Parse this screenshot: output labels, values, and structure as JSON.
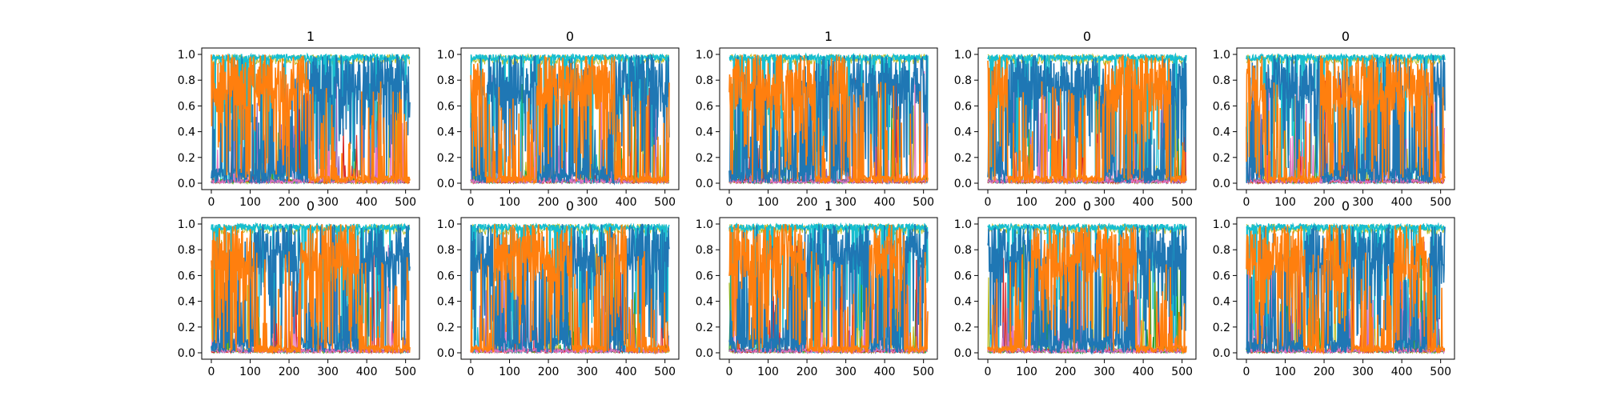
{
  "figure": {
    "rows": 2,
    "cols": 5,
    "tick_labels_x": [
      "0",
      "100",
      "200",
      "300",
      "400",
      "500"
    ],
    "tick_labels_y": [
      "0.0",
      "0.2",
      "0.4",
      "0.6",
      "0.8",
      "1.0"
    ]
  },
  "colors": {
    "blue": "#1f77b4",
    "orange": "#ff7f0e",
    "cyan": "#17becf",
    "olive": "#bcbd22",
    "green": "#2ca02c",
    "red": "#d62728",
    "purple": "#9467bd",
    "pink": "#e377c2"
  },
  "chart_data": [
    {
      "type": "line",
      "title": "1",
      "xlim": [
        0,
        511
      ],
      "ylim": [
        0,
        1
      ],
      "xticks": [
        0,
        100,
        200,
        300,
        400,
        500
      ],
      "yticks": [
        0,
        0.2,
        0.4,
        0.6,
        0.8,
        1.0
      ],
      "dominant_series": "orange",
      "orange_high_spans": [
        [
          0,
          250
        ]
      ]
    },
    {
      "type": "line",
      "title": "0",
      "xlim": [
        0,
        511
      ],
      "ylim": [
        0,
        1
      ],
      "xticks": [
        0,
        100,
        200,
        300,
        400,
        500
      ],
      "yticks": [
        0,
        0.2,
        0.4,
        0.6,
        0.8,
        1.0
      ],
      "dominant_series": "blue",
      "orange_high_spans": [
        [
          0,
          40
        ],
        [
          170,
          370
        ]
      ]
    },
    {
      "type": "line",
      "title": "1",
      "xlim": [
        0,
        511
      ],
      "ylim": [
        0,
        1
      ],
      "xticks": [
        0,
        100,
        200,
        300,
        400,
        500
      ],
      "yticks": [
        0,
        0.2,
        0.4,
        0.6,
        0.8,
        1.0
      ],
      "dominant_series": "orange",
      "orange_high_spans": [
        [
          0,
          220
        ],
        [
          260,
          310
        ]
      ]
    },
    {
      "type": "line",
      "title": "0",
      "xlim": [
        0,
        511
      ],
      "ylim": [
        0,
        1
      ],
      "xticks": [
        0,
        100,
        200,
        300,
        400,
        500
      ],
      "yticks": [
        0,
        0.2,
        0.4,
        0.6,
        0.8,
        1.0
      ],
      "dominant_series": "blue",
      "orange_high_spans": [
        [
          0,
          50
        ],
        [
          300,
          470
        ]
      ]
    },
    {
      "type": "line",
      "title": "0",
      "xlim": [
        0,
        511
      ],
      "ylim": [
        0,
        1
      ],
      "xticks": [
        0,
        100,
        200,
        300,
        400,
        500
      ],
      "yticks": [
        0,
        0.2,
        0.4,
        0.6,
        0.8,
        1.0
      ],
      "dominant_series": "blue",
      "orange_high_spans": [
        [
          0,
          50
        ],
        [
          190,
          480
        ]
      ]
    },
    {
      "type": "line",
      "title": "0",
      "xlim": [
        0,
        511
      ],
      "ylim": [
        0,
        1
      ],
      "xticks": [
        0,
        100,
        200,
        300,
        400,
        500
      ],
      "yticks": [
        0,
        0.2,
        0.4,
        0.6,
        0.8,
        1.0
      ],
      "dominant_series": "blue",
      "orange_high_spans": [
        [
          0,
          110
        ],
        [
          230,
          380
        ]
      ]
    },
    {
      "type": "line",
      "title": "0",
      "xlim": [
        0,
        511
      ],
      "ylim": [
        0,
        1
      ],
      "xticks": [
        0,
        100,
        200,
        300,
        400,
        500
      ],
      "yticks": [
        0,
        0.2,
        0.4,
        0.6,
        0.8,
        1.0
      ],
      "dominant_series": "blue",
      "orange_high_spans": [
        [
          60,
          260
        ],
        [
          350,
          400
        ]
      ]
    },
    {
      "type": "line",
      "title": "1",
      "xlim": [
        0,
        511
      ],
      "ylim": [
        0,
        1
      ],
      "xticks": [
        0,
        100,
        200,
        300,
        400,
        500
      ],
      "yticks": [
        0,
        0.2,
        0.4,
        0.6,
        0.8,
        1.0
      ],
      "dominant_series": "orange",
      "orange_high_spans": [
        [
          0,
          200
        ],
        [
          360,
          450
        ]
      ]
    },
    {
      "type": "line",
      "title": "0",
      "xlim": [
        0,
        511
      ],
      "ylim": [
        0,
        1
      ],
      "xticks": [
        0,
        100,
        200,
        300,
        400,
        500
      ],
      "yticks": [
        0,
        0.2,
        0.4,
        0.6,
        0.8,
        1.0
      ],
      "dominant_series": "orange",
      "orange_high_spans": [
        [
          110,
          380
        ]
      ]
    },
    {
      "type": "line",
      "title": "0",
      "xlim": [
        0,
        511
      ],
      "ylim": [
        0,
        1
      ],
      "xticks": [
        0,
        100,
        200,
        300,
        400,
        500
      ],
      "yticks": [
        0,
        0.2,
        0.4,
        0.6,
        0.8,
        1.0
      ],
      "dominant_series": "blue",
      "orange_high_spans": [
        [
          0,
          150
        ],
        [
          200,
          270
        ],
        [
          380,
          470
        ]
      ]
    }
  ]
}
